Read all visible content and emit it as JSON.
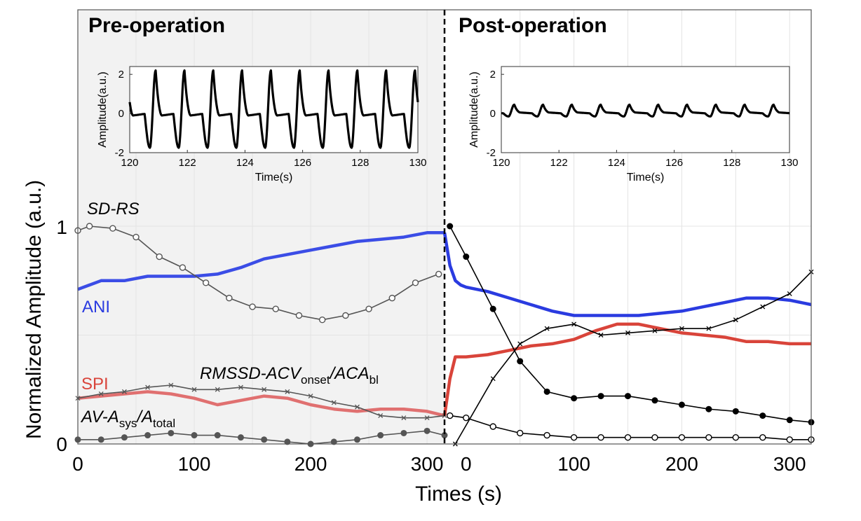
{
  "chart_data": {
    "type": "line",
    "xlabel": "Times (s)",
    "ylabel": "Normalized Amplitude (a.u.)",
    "ylim": [
      0,
      1
    ],
    "y_ticks": [
      "0",
      "1"
    ],
    "grid": true,
    "panels": [
      {
        "title": "Pre-operation",
        "xlim": [
          0,
          315
        ],
        "x_ticks": [
          "0",
          "100",
          "200",
          "300"
        ],
        "shaded": true,
        "series": [
          {
            "name": "ANI",
            "color": "#3b4de6",
            "marker": "none",
            "x": [
              0,
              10,
              20,
              40,
              60,
              80,
              100,
              120,
              140,
              160,
              180,
              200,
              220,
              240,
              260,
              280,
              300,
              315
            ],
            "values": [
              0.71,
              0.73,
              0.75,
              0.75,
              0.77,
              0.77,
              0.77,
              0.78,
              0.81,
              0.85,
              0.87,
              0.89,
              0.91,
              0.93,
              0.94,
              0.95,
              0.97,
              0.97
            ]
          },
          {
            "name": "SD-RS",
            "color": "#555555",
            "marker": "open-circle",
            "x": [
              0,
              10,
              30,
              50,
              70,
              90,
              110,
              130,
              150,
              170,
              190,
              210,
              230,
              250,
              270,
              290,
              310
            ],
            "values": [
              0.98,
              1.0,
              0.99,
              0.95,
              0.86,
              0.81,
              0.74,
              0.67,
              0.63,
              0.62,
              0.59,
              0.57,
              0.59,
              0.62,
              0.67,
              0.74,
              0.78
            ]
          },
          {
            "name": "SPI",
            "color": "#e07070",
            "marker": "none",
            "x": [
              0,
              20,
              40,
              60,
              80,
              100,
              120,
              140,
              160,
              180,
              200,
              220,
              240,
              260,
              280,
              300,
              315
            ],
            "values": [
              0.21,
              0.22,
              0.23,
              0.24,
              0.23,
              0.21,
              0.18,
              0.2,
              0.22,
              0.21,
              0.18,
              0.16,
              0.15,
              0.16,
              0.16,
              0.15,
              0.13
            ]
          },
          {
            "name": "RMSSD-ACV_onset/ACA_bl",
            "color": "#555555",
            "marker": "x",
            "x": [
              0,
              20,
              40,
              60,
              80,
              100,
              120,
              140,
              160,
              180,
              200,
              220,
              240,
              260,
              280,
              300,
              315
            ],
            "values": [
              0.21,
              0.23,
              0.24,
              0.26,
              0.27,
              0.25,
              0.25,
              0.26,
              0.25,
              0.24,
              0.22,
              0.19,
              0.17,
              0.13,
              0.12,
              0.12,
              0.13
            ]
          },
          {
            "name": "AV-A_sys/A_total",
            "color": "#555555",
            "marker": "filled-circle",
            "x": [
              0,
              20,
              40,
              60,
              80,
              100,
              120,
              140,
              160,
              180,
              200,
              220,
              240,
              260,
              280,
              300,
              315
            ],
            "values": [
              0.02,
              0.02,
              0.03,
              0.04,
              0.05,
              0.04,
              0.04,
              0.03,
              0.02,
              0.01,
              0.0,
              0.01,
              0.02,
              0.04,
              0.05,
              0.06,
              0.04
            ]
          }
        ]
      },
      {
        "title": "Post-operation",
        "xlim": [
          -20,
          320
        ],
        "x_ticks": [
          "0",
          "100",
          "200",
          "300"
        ],
        "shaded": false,
        "series": [
          {
            "name": "ANI",
            "color": "#2a3be0",
            "marker": "none",
            "x": [
              -20,
              -15,
              -10,
              -5,
              0,
              20,
              40,
              60,
              80,
              100,
              120,
              140,
              160,
              180,
              200,
              220,
              240,
              260,
              280,
              300,
              320
            ],
            "values": [
              0.97,
              0.82,
              0.75,
              0.73,
              0.72,
              0.7,
              0.67,
              0.64,
              0.61,
              0.59,
              0.59,
              0.59,
              0.59,
              0.6,
              0.61,
              0.63,
              0.65,
              0.67,
              0.67,
              0.66,
              0.64
            ]
          },
          {
            "name": "SPI",
            "color": "#d9443a",
            "marker": "none",
            "x": [
              -20,
              -15,
              -10,
              0,
              20,
              40,
              60,
              80,
              100,
              120,
              140,
              160,
              180,
              200,
              220,
              240,
              260,
              280,
              300,
              320
            ],
            "values": [
              0.13,
              0.3,
              0.4,
              0.4,
              0.41,
              0.43,
              0.45,
              0.46,
              0.48,
              0.52,
              0.55,
              0.55,
              0.53,
              0.51,
              0.5,
              0.49,
              0.47,
              0.47,
              0.46,
              0.46
            ]
          },
          {
            "name": "SD-RS",
            "color": "#000000",
            "marker": "open-circle",
            "x": [
              -15,
              0,
              25,
              50,
              75,
              100,
              125,
              150,
              175,
              200,
              225,
              250,
              275,
              300,
              320
            ],
            "values": [
              0.13,
              0.12,
              0.08,
              0.05,
              0.04,
              0.03,
              0.03,
              0.03,
              0.03,
              0.03,
              0.03,
              0.03,
              0.03,
              0.02,
              0.02
            ]
          },
          {
            "name": "RMSSD-ACV_onset/ACA_bl",
            "color": "#000000",
            "marker": "x",
            "x": [
              -10,
              25,
              50,
              75,
              100,
              125,
              150,
              175,
              200,
              225,
              250,
              275,
              300,
              320
            ],
            "values": [
              0.0,
              0.3,
              0.46,
              0.53,
              0.55,
              0.5,
              0.51,
              0.52,
              0.53,
              0.53,
              0.57,
              0.63,
              0.69,
              0.79
            ]
          },
          {
            "name": "AV-A_sys/A_total",
            "color": "#000000",
            "marker": "filled-circle",
            "x": [
              -15,
              0,
              25,
              50,
              75,
              100,
              125,
              150,
              175,
              200,
              225,
              250,
              275,
              300,
              320
            ],
            "values": [
              1.0,
              0.86,
              0.62,
              0.38,
              0.24,
              0.21,
              0.22,
              0.22,
              0.2,
              0.18,
              0.16,
              0.15,
              0.13,
              0.11,
              0.1
            ]
          }
        ]
      }
    ],
    "insets": [
      {
        "panel": "Pre-operation",
        "xlabel": "Time(s)",
        "ylabel": "Amplitude(a.u.)",
        "xlim": [
          120,
          130
        ],
        "ylim": [
          -2,
          2.4
        ],
        "x_ticks": [
          "120",
          "122",
          "124",
          "126",
          "128",
          "130"
        ],
        "y_ticks": [
          "-2",
          "0",
          "2"
        ],
        "period": 1.0,
        "first_peak": 120.9,
        "peak": 2.2,
        "trough": -1.75,
        "shoulder": -0.1
      },
      {
        "panel": "Post-operation",
        "xlabel": "Time(s)",
        "ylabel": "Amplitude(a.u.)",
        "xlim": [
          120,
          130
        ],
        "ylim": [
          -2,
          2.4
        ],
        "x_ticks": [
          "120",
          "122",
          "124",
          "126",
          "128",
          "130"
        ],
        "y_ticks": [
          "-2",
          "0",
          "2"
        ],
        "period": 1.0,
        "first_peak": 120.45,
        "peak": 0.45,
        "trough": -0.15,
        "shoulder": 0.05
      }
    ],
    "annotations": {
      "sd_rs": "SD-RS",
      "ani": "ANI",
      "spi": "SPI",
      "rmssd_main": "RMSSD-ACV",
      "rmssd_sub1": "onset",
      "rmssd_mid": "/ACA",
      "rmssd_sub2": "bl",
      "av_main": "AV-A",
      "av_sub1": "sys",
      "av_mid": "/A",
      "av_sub2": "total"
    }
  }
}
